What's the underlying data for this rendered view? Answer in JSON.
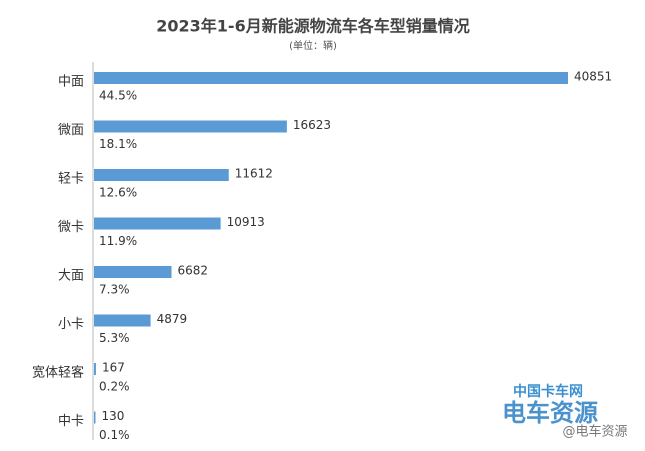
{
  "chart_data": {
    "type": "hbar",
    "title": "2023年1-6月新能源物流车各车型销量情况",
    "subtitle": "(单位：辆)",
    "categories": [
      "中面",
      "微面",
      "轻卡",
      "微卡",
      "大面",
      "小卡",
      "宽体轻客",
      "中卡"
    ],
    "values": [
      40851,
      16623,
      11612,
      10913,
      6682,
      4879,
      167,
      130
    ],
    "shares": [
      {
        "value": 44.5,
        "label": "44.5%"
      },
      {
        "value": 18.1,
        "label": "18.1%"
      },
      {
        "value": 12.6,
        "label": "12.6%"
      },
      {
        "value": 11.9,
        "label": "11.9%"
      },
      {
        "value": 7.3,
        "label": "7.3%"
      },
      {
        "value": 5.3,
        "label": "5.3%"
      },
      {
        "value": 0.2,
        "label": "0.2%"
      },
      {
        "value": 0.1,
        "label": "0.1%"
      }
    ],
    "color": "#5b9bd5",
    "annotations": [
      "中国卡车网",
      "电车资源",
      "@电车资源"
    ]
  }
}
